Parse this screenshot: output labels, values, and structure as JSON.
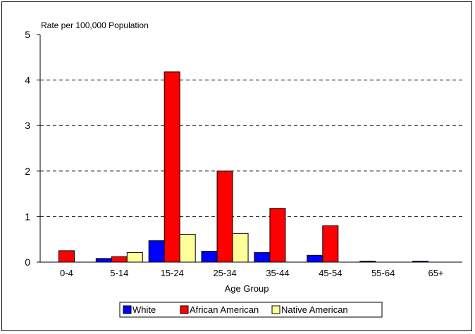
{
  "chart_data": {
    "type": "bar",
    "ylabel": "Rate per 100,000 Population",
    "xlabel": "Age Group",
    "categories": [
      "0-4",
      "5-14",
      "15-24",
      "25-34",
      "35-44",
      "45-54",
      "55-64",
      "65+"
    ],
    "ylim": [
      0,
      5
    ],
    "yticks": [
      "0",
      "1",
      "2",
      "3",
      "4",
      "5"
    ],
    "grid": true,
    "legend_position": "bottom",
    "series": [
      {
        "name": "White",
        "color": "#0000ff",
        "values": [
          0,
          0.08,
          0.47,
          0.24,
          0.21,
          0.15,
          0.02,
          0.02
        ]
      },
      {
        "name": "African American",
        "color": "#ff0000",
        "values": [
          0.25,
          0.12,
          4.18,
          2.0,
          1.18,
          0.8,
          0,
          0
        ]
      },
      {
        "name": "Native American",
        "color": "#ffff99",
        "values": [
          0,
          0.21,
          0.61,
          0.63,
          0,
          0,
          0,
          0
        ]
      }
    ]
  }
}
